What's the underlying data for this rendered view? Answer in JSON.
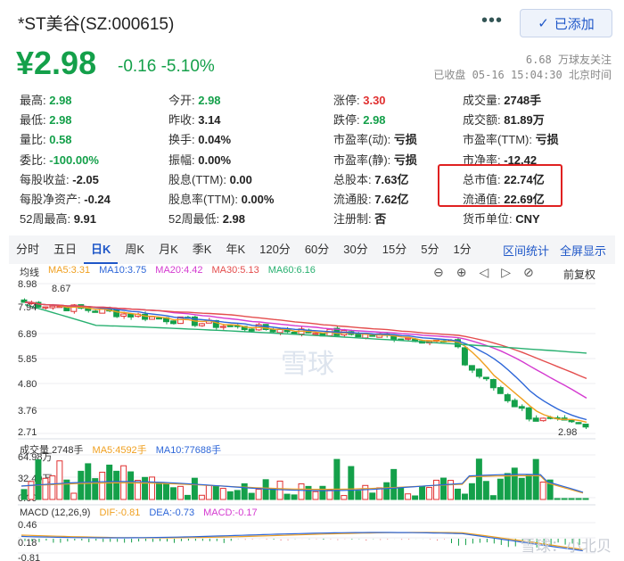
{
  "header": {
    "title": "*ST美谷(SZ:000615)",
    "more_label": "•••",
    "added_label": "已添加",
    "price": "¥2.98",
    "change": "-0.16  -5.10%",
    "followers": "6.68 万球友关注",
    "status": "已收盘 05-16 15:04:30 北京时间"
  },
  "quote": [
    [
      {
        "label": "最高:",
        "value": "2.98",
        "color": "green"
      },
      {
        "label": "今开:",
        "value": "2.98",
        "color": "green"
      },
      {
        "label": "涨停:",
        "value": "3.30",
        "color": "red"
      },
      {
        "label": "成交量:",
        "value": "2748手",
        "color": ""
      }
    ],
    [
      {
        "label": "最低:",
        "value": "2.98",
        "color": "green"
      },
      {
        "label": "昨收:",
        "value": "3.14",
        "color": ""
      },
      {
        "label": "跌停:",
        "value": "2.98",
        "color": "green"
      },
      {
        "label": "成交额:",
        "value": "81.89万",
        "color": ""
      }
    ],
    [
      {
        "label": "量比:",
        "value": "0.58",
        "color": "green"
      },
      {
        "label": "换手:",
        "value": "0.04%",
        "color": ""
      },
      {
        "label": "市盈率(动):",
        "value": "亏损",
        "color": ""
      },
      {
        "label": "市盈率(TTM):",
        "value": "亏损",
        "color": ""
      }
    ],
    [
      {
        "label": "委比:",
        "value": "-100.00%",
        "color": "green"
      },
      {
        "label": "振幅:",
        "value": "0.00%",
        "color": ""
      },
      {
        "label": "市盈率(静):",
        "value": "亏损",
        "color": ""
      },
      {
        "label": "市净率:",
        "value": "-12.42",
        "color": ""
      }
    ],
    [
      {
        "label": "每股收益:",
        "value": "-2.05",
        "color": ""
      },
      {
        "label": "股息(TTM):",
        "value": "0.00",
        "color": ""
      },
      {
        "label": "总股本:",
        "value": "7.63亿",
        "color": ""
      },
      {
        "label": "总市值:",
        "value": "22.74亿",
        "color": ""
      }
    ],
    [
      {
        "label": "每股净资产:",
        "value": "-0.24",
        "color": ""
      },
      {
        "label": "股息率(TTM):",
        "value": "0.00%",
        "color": ""
      },
      {
        "label": "流通股:",
        "value": "7.62亿",
        "color": ""
      },
      {
        "label": "流通值:",
        "value": "22.69亿",
        "color": ""
      }
    ],
    [
      {
        "label": "52周最高:",
        "value": "9.91",
        "color": ""
      },
      {
        "label": "52周最低:",
        "value": "2.98",
        "color": ""
      },
      {
        "label": "注册制:",
        "value": "否",
        "color": ""
      },
      {
        "label": "货币单位:",
        "value": "CNY",
        "color": ""
      }
    ]
  ],
  "tabs": [
    "分时",
    "五日",
    "日K",
    "周K",
    "月K",
    "季K",
    "年K",
    "120分",
    "60分",
    "30分",
    "15分",
    "5分",
    "1分"
  ],
  "active_tab": 2,
  "tab_actions": [
    "区间统计",
    "全屏显示"
  ],
  "ma": {
    "label": "均线",
    "items": [
      {
        "text": "MA5:3.31",
        "color": "#f0a020"
      },
      {
        "text": "MA10:3.75",
        "color": "#2d66d8"
      },
      {
        "text": "MA20:4.42",
        "color": "#d43ad0"
      },
      {
        "text": "MA30:5.13",
        "color": "#e44d4d"
      },
      {
        "text": "MA60:6.16",
        "color": "#28b070"
      }
    ],
    "adjust": "前复权"
  },
  "kline": {
    "y_ticks": [
      "8.98",
      "7.94",
      "6.89",
      "5.85",
      "4.80",
      "3.76",
      "2.71"
    ],
    "high_label": "8.67",
    "low_label": "2.98"
  },
  "volume": {
    "label": "成交量 2748手",
    "items": [
      {
        "text": "MA5:4592手",
        "color": "#f0a020"
      },
      {
        "text": "MA10:77688手",
        "color": "#2d66d8"
      }
    ],
    "y_ticks": [
      "64.98万",
      "32.49万",
      "0.00"
    ]
  },
  "macd": {
    "label": "MACD (12,26,9)",
    "items": [
      {
        "text": "DIF:-0.81",
        "color": "#f0a020"
      },
      {
        "text": "DEA:-0.73",
        "color": "#2d66d8"
      },
      {
        "text": "MACD:-0.17",
        "color": "#d43ad0"
      }
    ],
    "y_ticks": [
      "0.46",
      "0.18",
      "-0.81"
    ]
  },
  "watermark": "雪球",
  "footer_watermark": "雪球：小北贝",
  "colors": {
    "up": "#e03030",
    "down": "#14a04a",
    "accent": "#1f57c8"
  }
}
